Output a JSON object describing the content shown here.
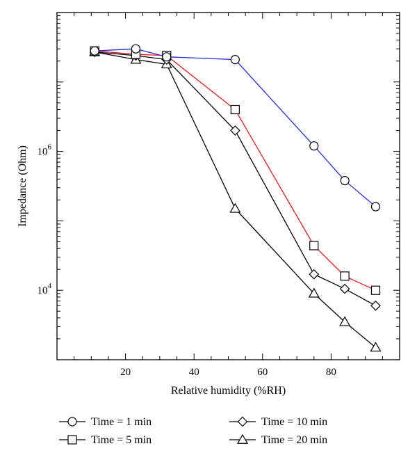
{
  "chart_data": {
    "type": "line",
    "xlabel": "Relative humidity (%RH)",
    "ylabel": "Impedance (Ohm)",
    "x": [
      11,
      23,
      32,
      52,
      75,
      84,
      93
    ],
    "xlim": [
      0,
      100
    ],
    "ylim": [
      1000,
      100000000
    ],
    "y_scale": "log",
    "xticks": [
      20,
      40,
      60,
      80
    ],
    "xtick_labels": [
      "20",
      "40",
      "60",
      "80"
    ],
    "yticks": [
      10000,
      1000000
    ],
    "ytick_labels": [
      {
        "base": "10",
        "exp": "4"
      },
      {
        "base": "10",
        "exp": "6"
      }
    ],
    "grid": false,
    "legend_position": "bottom",
    "series": [
      {
        "name": "Time = 1 min",
        "marker": "circle",
        "color": "#1f2bd6",
        "values": [
          28000000,
          30000000,
          23000000,
          21000000,
          1200000,
          380000,
          160000
        ]
      },
      {
        "name": "Time = 5 min",
        "marker": "square",
        "color": "#e0191b",
        "values": [
          28000000,
          25000000,
          24000000,
          4000000,
          44000,
          16000,
          10000
        ]
      },
      {
        "name": "Time = 10 min",
        "marker": "diamond",
        "color": "#000000",
        "values": [
          27000000,
          24000000,
          21000000,
          2000000,
          17000,
          10500,
          6000
        ]
      },
      {
        "name": "Time = 20 min",
        "marker": "triangle",
        "color": "#000000",
        "values": [
          27000000,
          21000000,
          18000000,
          150000,
          9000,
          3500,
          1500
        ]
      }
    ]
  }
}
